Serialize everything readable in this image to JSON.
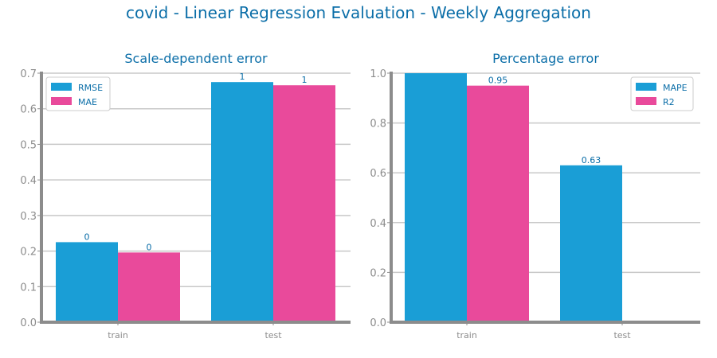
{
  "suptitle": "covid - Linear Regression Evaluation - Weekly Aggregation",
  "colors": {
    "series_1": "#1a9ed6",
    "series_2": "#e94a9b",
    "text": "#0b6ea8",
    "axis": "#8c8c8c",
    "grid": "#c8c8c8"
  },
  "chart_data": [
    {
      "type": "bar",
      "title": "Scale-dependent error",
      "xlabel": "",
      "ylabel": "",
      "categories": [
        "train",
        "test"
      ],
      "ylim": [
        0,
        0.7
      ],
      "yticks": [
        0.0,
        0.1,
        0.2,
        0.3,
        0.4,
        0.5,
        0.6,
        0.7
      ],
      "ytick_labels": [
        "0.0",
        "0.1",
        "0.2",
        "0.3",
        "0.4",
        "0.5",
        "0.6",
        "0.7"
      ],
      "grid": true,
      "legend_position": "top-left",
      "series": [
        {
          "name": "RMSE",
          "values": [
            0.225,
            0.675
          ],
          "labels": [
            "0",
            "1"
          ]
        },
        {
          "name": "MAE",
          "values": [
            0.196,
            0.666
          ],
          "labels": [
            "0",
            "1"
          ]
        }
      ]
    },
    {
      "type": "bar",
      "title": "Percentage error",
      "xlabel": "",
      "ylabel": "",
      "categories": [
        "train",
        "test"
      ],
      "ylim": [
        0,
        1.0
      ],
      "yticks": [
        0.0,
        0.2,
        0.4,
        0.6,
        0.8,
        1.0
      ],
      "ytick_labels": [
        "0.0",
        "0.2",
        "0.4",
        "0.6",
        "0.8",
        "1.0"
      ],
      "grid": true,
      "legend_position": "top-right",
      "series": [
        {
          "name": "MAPE",
          "values": [
            1.0,
            0.63
          ],
          "labels": [
            "",
            "0.63"
          ]
        },
        {
          "name": "R2",
          "values": [
            0.95,
            null
          ],
          "labels": [
            "0.95",
            ""
          ]
        }
      ]
    }
  ]
}
